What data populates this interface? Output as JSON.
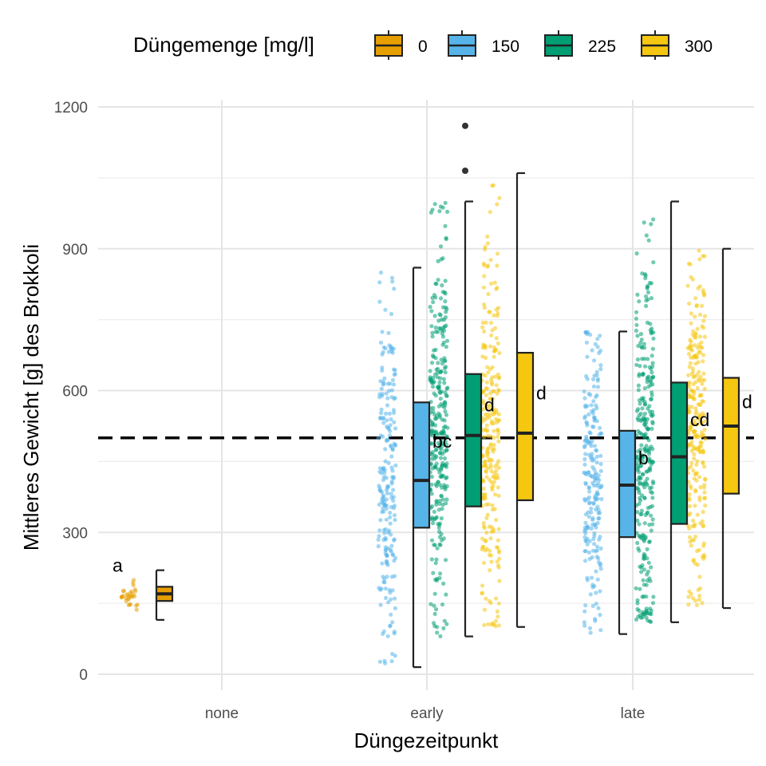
{
  "chart_data": {
    "type": "boxplot",
    "xlabel": "Düngezeitpunkt",
    "ylabel": "Mittleres Gewicht [g] des Brokkoli",
    "ylim": [
      -20,
      1250
    ],
    "y_ticks": [
      0,
      300,
      600,
      900,
      1200
    ],
    "categories": [
      "none",
      "early",
      "late"
    ],
    "reference_line": {
      "y": 500,
      "style": "dashed"
    },
    "legend": {
      "title": "Düngemenge [mg/l]",
      "position": "top",
      "entries": [
        {
          "label": "0",
          "color": "#E69F00"
        },
        {
          "label": "150",
          "color": "#56B4E9"
        },
        {
          "label": "225",
          "color": "#009E73"
        },
        {
          "label": "300",
          "color": "#F5C710"
        }
      ]
    },
    "series": [
      {
        "name": "0",
        "color": "#E69F00",
        "n_points": 30,
        "boxes": [
          {
            "category": "none",
            "min": 115,
            "q1": 155,
            "median": 170,
            "q3": 185,
            "max": 220,
            "outliers": [],
            "letter": "a"
          }
        ]
      },
      {
        "name": "150",
        "color": "#56B4E9",
        "n_points": 220,
        "boxes": [
          {
            "category": "early",
            "min": 15,
            "q1": 310,
            "median": 410,
            "q3": 575,
            "max": 860,
            "outliers": [],
            "letter": "bc"
          },
          {
            "category": "late",
            "min": 85,
            "q1": 290,
            "median": 400,
            "q3": 515,
            "max": 725,
            "outliers": [],
            "letter": "b"
          }
        ]
      },
      {
        "name": "225",
        "color": "#009E73",
        "n_points": 300,
        "boxes": [
          {
            "category": "early",
            "min": 80,
            "q1": 355,
            "median": 505,
            "q3": 635,
            "max": 1000,
            "outliers": [
              1065,
              1160
            ],
            "letter": "d"
          },
          {
            "category": "late",
            "min": 110,
            "q1": 318,
            "median": 460,
            "q3": 617,
            "max": 1000,
            "outliers": [],
            "letter": "cd"
          }
        ]
      },
      {
        "name": "300",
        "color": "#F5C710",
        "n_points": 260,
        "boxes": [
          {
            "category": "early",
            "min": 100,
            "q1": 368,
            "median": 510,
            "q3": 680,
            "max": 1060,
            "outliers": [],
            "letter": "d"
          },
          {
            "category": "late",
            "min": 140,
            "q1": 382,
            "median": 525,
            "q3": 627,
            "max": 900,
            "outliers": [],
            "letter": "d"
          }
        ]
      }
    ]
  }
}
